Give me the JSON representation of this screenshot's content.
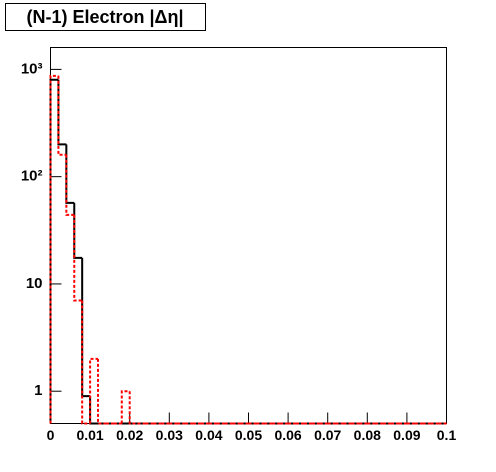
{
  "chart_data": {
    "type": "histogram",
    "title": "(N-1) Electron |Δη|",
    "bins": [
      0,
      0.002,
      0.004,
      0.006,
      0.008,
      0.01,
      0.012,
      0.014,
      0.016,
      0.018,
      0.02,
      0.022,
      0.024,
      0.026,
      0.028,
      0.03,
      0.032,
      0.034,
      0.036,
      0.038,
      0.04,
      0.042,
      0.044,
      0.046,
      0.048,
      0.05,
      0.052,
      0.054,
      0.056,
      0.058,
      0.06,
      0.062,
      0.064,
      0.066,
      0.068,
      0.07,
      0.072,
      0.074,
      0.076,
      0.078,
      0.08,
      0.082,
      0.084,
      0.086,
      0.088,
      0.09,
      0.092,
      0.094,
      0.096,
      0.098,
      0.1
    ],
    "series": [
      {
        "color": "#000000",
        "style": "solid",
        "values": [
          800,
          200,
          57,
          17.5,
          0.9,
          0,
          0,
          0,
          0,
          0,
          0,
          0,
          0,
          0,
          0,
          0,
          0,
          0,
          0,
          0,
          0,
          0,
          0,
          0,
          0,
          0,
          0,
          0,
          0,
          0,
          0,
          0,
          0,
          0,
          0,
          0,
          0,
          0,
          0,
          0,
          0,
          0,
          0,
          0,
          0,
          0,
          0,
          0,
          0,
          0
        ]
      },
      {
        "color": "#ff0000",
        "style": "dashed",
        "values": [
          870,
          160,
          44,
          7,
          0,
          2,
          0,
          0,
          0,
          1,
          0,
          0,
          0,
          0,
          0,
          0,
          0,
          0,
          0,
          0,
          0,
          0,
          0,
          0,
          0,
          0,
          0,
          0,
          0,
          0,
          0,
          0,
          0,
          0,
          0,
          0,
          0,
          0,
          0,
          0,
          0,
          0,
          0,
          0,
          0,
          0,
          0,
          0,
          0,
          0
        ]
      }
    ],
    "xlim": [
      0,
      0.1
    ],
    "xticks": [
      0,
      0.01,
      0.02,
      0.03,
      0.04,
      0.05,
      0.06,
      0.07,
      0.08,
      0.09,
      0.1
    ],
    "ylim": [
      0.5,
      1600
    ],
    "ylog": true,
    "yticks": [
      1,
      10,
      {
        "value": 100,
        "label": "10²"
      },
      {
        "value": 1000,
        "label": "10³"
      }
    ]
  }
}
